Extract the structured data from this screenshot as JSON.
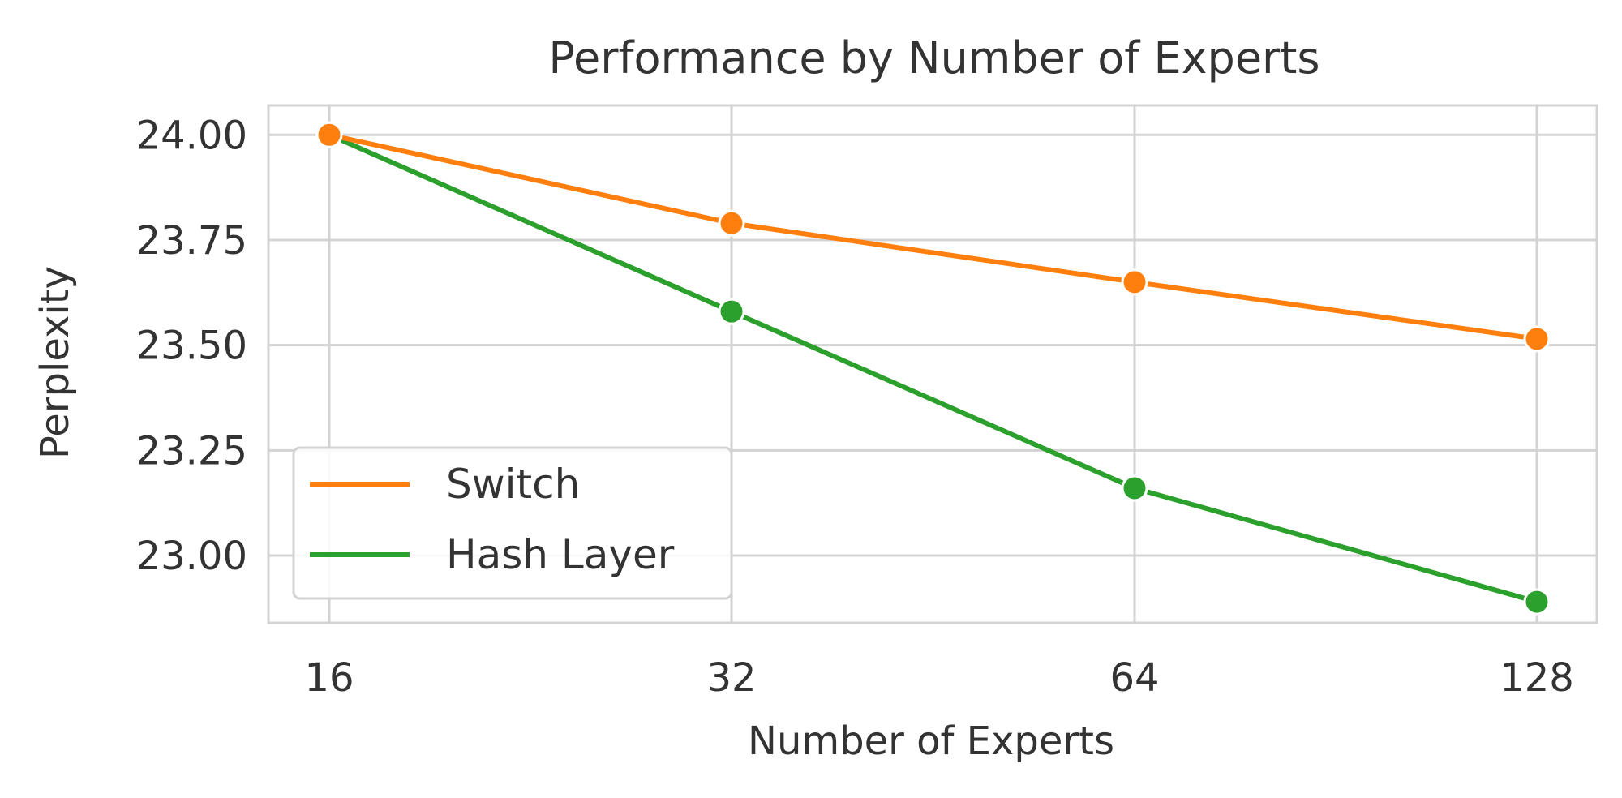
{
  "chart_data": {
    "type": "line",
    "title": "Performance by Number of Experts",
    "xlabel": "Number of Experts",
    "ylabel": "Perplexity",
    "x": [
      16,
      32,
      64,
      128
    ],
    "x_tick_labels": [
      "16",
      "32",
      "64",
      "128"
    ],
    "x_scale": "log2",
    "y_ticks": [
      23.0,
      23.25,
      23.5,
      23.75,
      24.0
    ],
    "y_tick_labels": [
      "23.00",
      "23.25",
      "23.50",
      "23.75",
      "24.00"
    ],
    "ylim": [
      22.84,
      24.07
    ],
    "grid": true,
    "legend_position": "lower-left",
    "series": [
      {
        "name": "Switch",
        "color": "#ff7f0e",
        "values": [
          24.0,
          23.79,
          23.65,
          23.515
        ]
      },
      {
        "name": "Hash Layer",
        "color": "#2ca02c",
        "values": [
          24.0,
          23.58,
          23.16,
          22.89
        ]
      }
    ]
  }
}
